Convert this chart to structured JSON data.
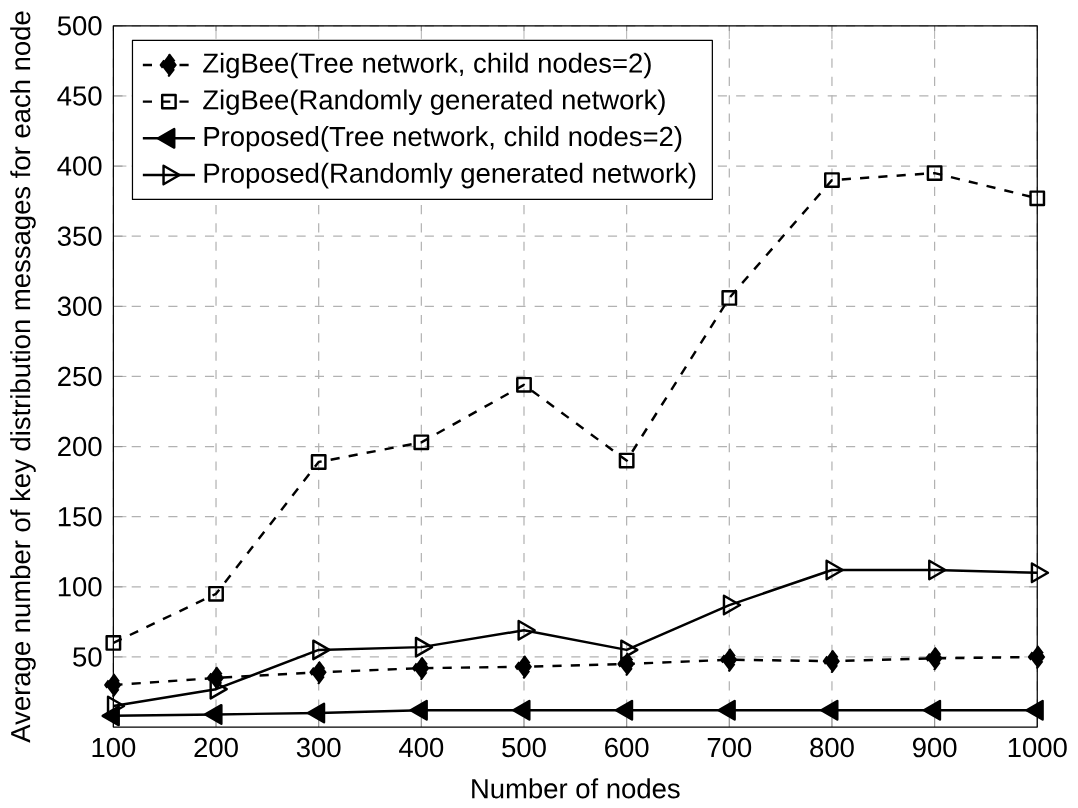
{
  "chart_data": {
    "type": "line",
    "xlabel": "Number of nodes",
    "ylabel": "Average number of key distribution messages for each node",
    "x": [
      100,
      200,
      300,
      400,
      500,
      600,
      700,
      800,
      900,
      1000
    ],
    "xlim": [
      100,
      1000
    ],
    "xticks": [
      100,
      200,
      300,
      400,
      500,
      600,
      700,
      800,
      900,
      1000
    ],
    "ylim": [
      0,
      500
    ],
    "yticks": [
      50,
      100,
      150,
      200,
      250,
      300,
      350,
      400,
      450,
      500
    ],
    "grid": true,
    "legend": "top left",
    "series": [
      {
        "name": "ZigBee(Tree network, child nodes=2)",
        "color": "#000000",
        "marker": "diamond",
        "line_style": "dashed",
        "values": [
          30,
          35,
          39,
          42,
          43,
          45,
          48,
          47,
          49,
          50
        ]
      },
      {
        "name": "ZigBee(Randomly generated network)",
        "color": "#000000",
        "marker": "square",
        "line_style": "dashed",
        "values": [
          60,
          95,
          189,
          203,
          244,
          190,
          306,
          390,
          395,
          377
        ]
      },
      {
        "name": "Proposed(Tree network, child nodes=2)",
        "color": "#000000",
        "marker": "triangle-left",
        "line_style": "solid",
        "values": [
          8,
          9,
          10,
          12,
          12,
          12,
          12,
          12,
          12,
          12
        ]
      },
      {
        "name": "Proposed(Randomly generated network)",
        "color": "#000000",
        "marker": "triangle-right",
        "line_style": "solid",
        "values": [
          15,
          27,
          55,
          57,
          69,
          55,
          87,
          112,
          112,
          110
        ]
      }
    ]
  }
}
